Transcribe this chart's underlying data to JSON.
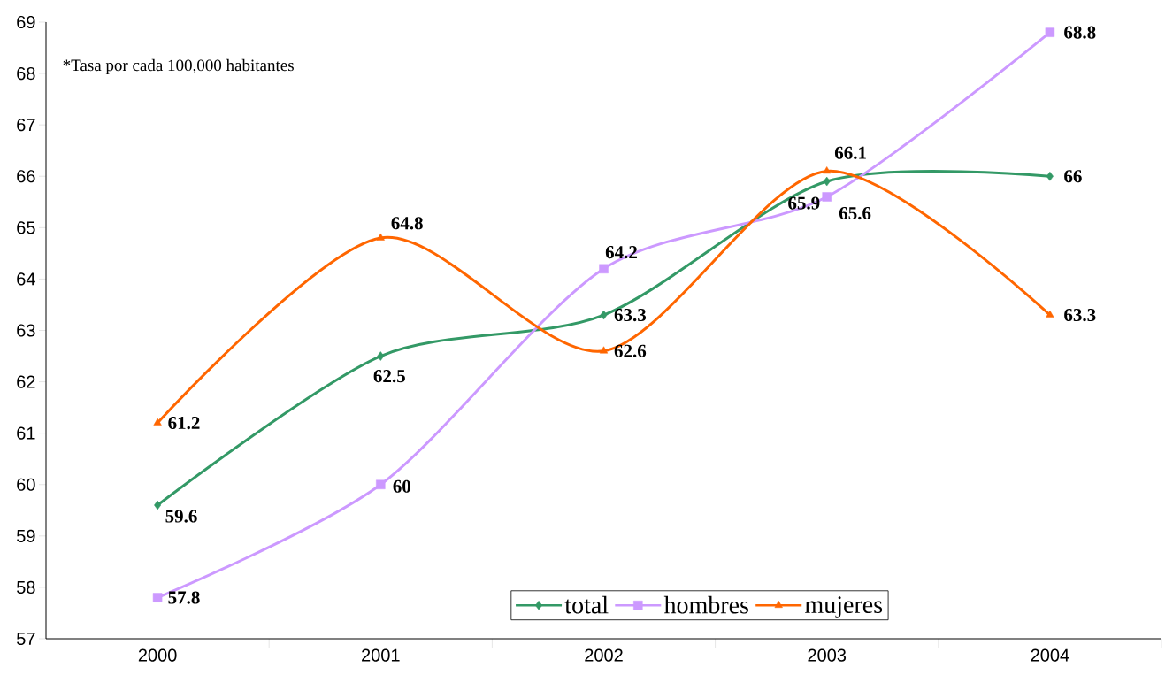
{
  "chart_data": {
    "type": "line",
    "categories": [
      "2000",
      "2001",
      "2002",
      "2003",
      "2004"
    ],
    "series": [
      {
        "name": "total",
        "color": "#339966",
        "marker": "diamond",
        "values": [
          59.6,
          62.5,
          63.3,
          65.9,
          66
        ]
      },
      {
        "name": "hombres",
        "color": "#cc99ff",
        "marker": "square",
        "values": [
          57.8,
          60,
          64.2,
          65.6,
          68.8
        ]
      },
      {
        "name": "mujeres",
        "color": "#ff6600",
        "marker": "triangle",
        "values": [
          61.2,
          64.8,
          62.6,
          66.1,
          63.3
        ]
      }
    ],
    "ylim": [
      57,
      69
    ],
    "yticks": [
      57,
      58,
      59,
      60,
      61,
      62,
      63,
      64,
      65,
      66,
      67,
      68,
      69
    ],
    "data_labels": true,
    "legend": "bottom",
    "grid": false,
    "line_style": "solid",
    "annotations": [
      "*Tasa por cada 100,000 habitantes"
    ]
  }
}
